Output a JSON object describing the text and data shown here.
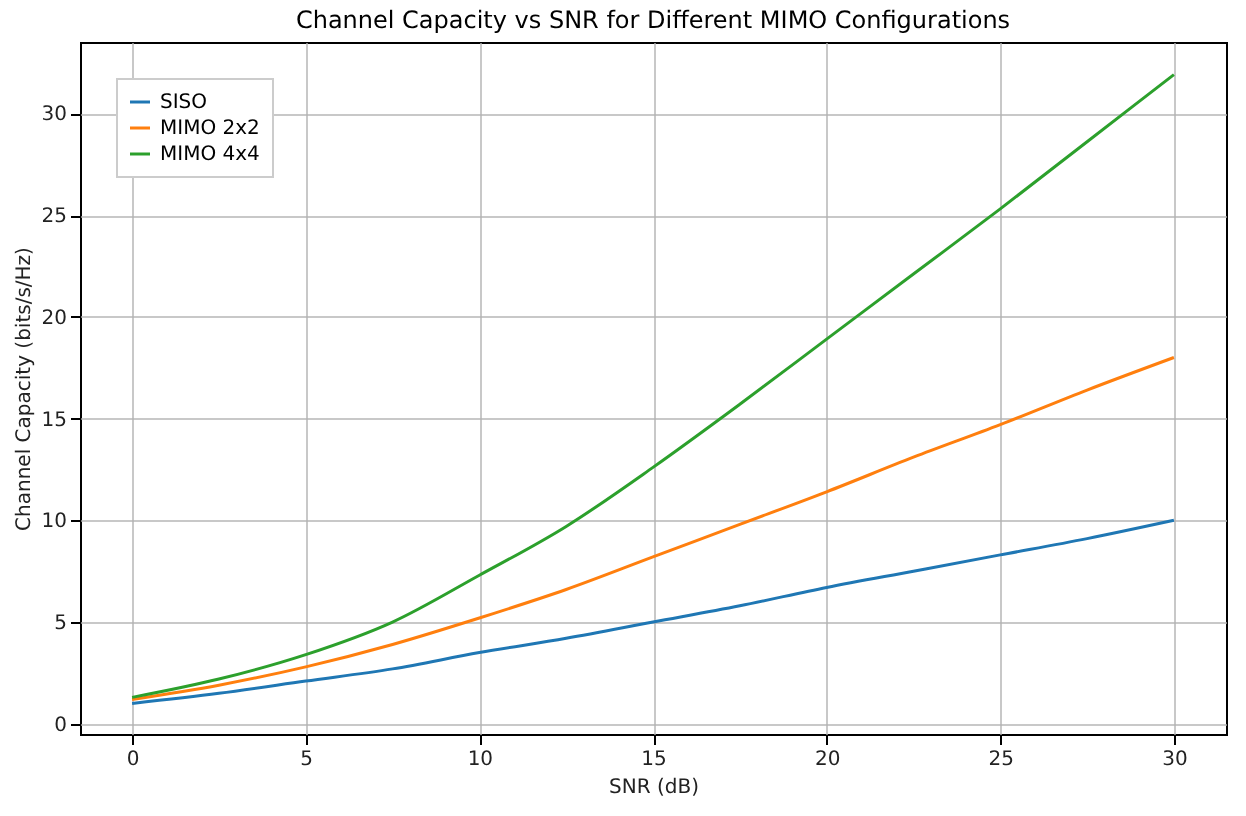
{
  "chart_data": {
    "type": "line",
    "title": "Channel Capacity vs SNR for Different MIMO Configurations",
    "xlabel": "SNR (dB)",
    "ylabel": "Channel Capacity (bits/s/Hz)",
    "x": [
      0,
      2.5,
      5,
      7.5,
      10,
      12.5,
      15,
      17.5,
      20,
      22.5,
      25,
      27.5,
      30
    ],
    "series": [
      {
        "name": "SISO",
        "color": "#1f77b4",
        "values": [
          1.0,
          1.5,
          2.1,
          2.7,
          3.5,
          4.2,
          5.0,
          5.8,
          6.7,
          7.5,
          8.3,
          9.1,
          10.0
        ]
      },
      {
        "name": "MIMO 2x2",
        "color": "#ff7f0e",
        "values": [
          1.2,
          1.9,
          2.8,
          3.9,
          5.2,
          6.6,
          8.2,
          9.8,
          11.4,
          13.1,
          14.7,
          16.4,
          18.0
        ]
      },
      {
        "name": "MIMO 4x4",
        "color": "#2ca02c",
        "values": [
          1.3,
          2.2,
          3.4,
          5.0,
          7.3,
          9.7,
          12.6,
          15.7,
          18.9,
          22.1,
          25.3,
          28.6,
          31.9
        ]
      }
    ],
    "xlim": [
      -1.5,
      31.5
    ],
    "xticks": [
      0,
      5,
      10,
      15,
      20,
      25,
      30
    ],
    "ylim": [
      -0.5,
      33.5
    ],
    "yticks": [
      0,
      5,
      10,
      15,
      20,
      25,
      30
    ],
    "grid": true,
    "legend": "top left"
  }
}
